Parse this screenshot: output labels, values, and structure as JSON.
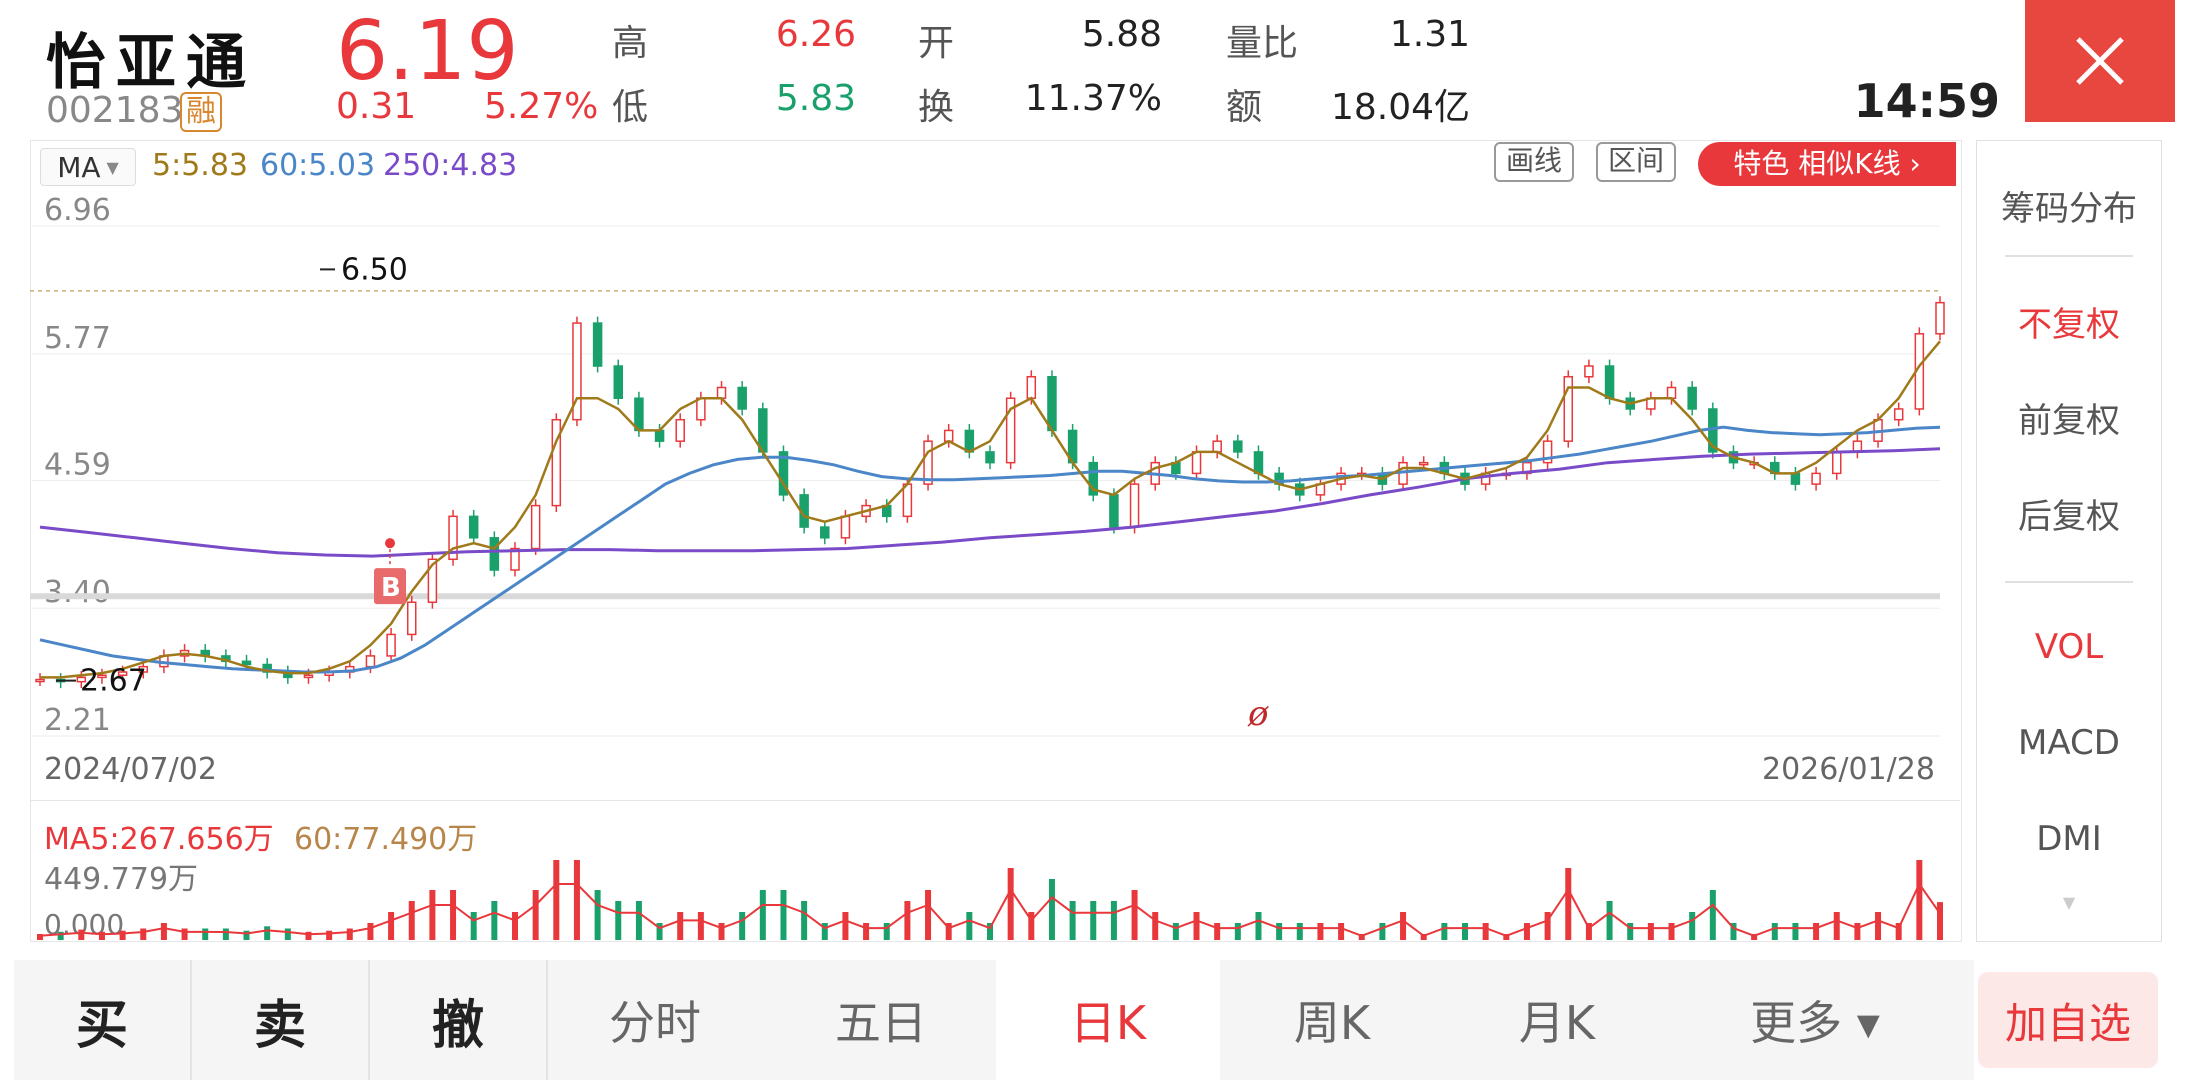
{
  "header": {
    "stock_name": "怡亚通",
    "stock_code": "002183",
    "margin_badge": "融",
    "price": "6.19",
    "change": "0.31",
    "change_pct": "5.27%",
    "time": "14:59",
    "quotes": [
      {
        "label": "高",
        "value": "6.26",
        "tone": "red"
      },
      {
        "label": "低",
        "value": "5.83",
        "tone": "green"
      },
      {
        "label": "开",
        "value": "5.88",
        "tone": "dark"
      },
      {
        "label": "换",
        "value": "11.37%",
        "tone": "dark"
      },
      {
        "label": "量比",
        "value": "1.31",
        "tone": "dark"
      },
      {
        "label": "额",
        "value": "18.04亿",
        "tone": "dark"
      }
    ],
    "close_icon": "close-icon"
  },
  "toolbar": {
    "ma_select": "MA",
    "ma5": "5:5.83",
    "ma60": "60:5.03",
    "ma250": "250:4.83",
    "draw_button": "画线",
    "range_button": "区间",
    "special_button": "特色  相似K线 ›"
  },
  "chart_data": {
    "type": "candlestick",
    "y_axis_labels": [
      "6.96",
      "5.77",
      "4.59",
      "3.40",
      "2.21"
    ],
    "ylim": [
      2.21,
      6.96
    ],
    "x_start": "2024/07/02",
    "x_end": "2026/01/28",
    "high_marker": "6.50",
    "low_marker": "2.67",
    "buy_marker": "B",
    "center_marker": "ø",
    "colors": {
      "up": "#e8383b",
      "down": "#1aa06b",
      "ma5": "#a07a1a",
      "ma60": "#4a86c8",
      "ma250": "#7a4bc8"
    },
    "close_series": [
      2.68,
      2.66,
      2.7,
      2.72,
      2.75,
      2.8,
      2.9,
      2.95,
      2.9,
      2.85,
      2.82,
      2.75,
      2.7,
      2.72,
      2.75,
      2.8,
      2.9,
      3.1,
      3.4,
      3.8,
      4.2,
      4.0,
      3.7,
      3.9,
      4.3,
      5.1,
      6.0,
      5.6,
      5.3,
      5.0,
      4.9,
      5.1,
      5.3,
      5.4,
      5.2,
      4.8,
      4.4,
      4.1,
      4.0,
      4.2,
      4.3,
      4.2,
      4.5,
      4.9,
      5.0,
      4.8,
      4.7,
      5.3,
      5.5,
      5.0,
      4.7,
      4.4,
      4.1,
      4.5,
      4.7,
      4.6,
      4.8,
      4.9,
      4.8,
      4.6,
      4.5,
      4.4,
      4.5,
      4.6,
      4.6,
      4.5,
      4.7,
      4.7,
      4.6,
      4.5,
      4.6,
      4.6,
      4.7,
      4.9,
      5.5,
      5.6,
      5.3,
      5.2,
      5.3,
      5.4,
      5.2,
      4.8,
      4.7,
      4.7,
      4.6,
      4.5,
      4.6,
      4.8,
      4.9,
      5.1,
      5.2,
      5.9,
      6.19
    ],
    "ma5_series": [
      2.7,
      2.7,
      2.72,
      2.74,
      2.78,
      2.84,
      2.9,
      2.92,
      2.9,
      2.86,
      2.8,
      2.76,
      2.74,
      2.74,
      2.78,
      2.85,
      3.0,
      3.2,
      3.5,
      3.75,
      3.9,
      3.95,
      3.9,
      4.1,
      4.4,
      4.9,
      5.3,
      5.3,
      5.2,
      5.0,
      5.0,
      5.2,
      5.3,
      5.3,
      5.1,
      4.8,
      4.5,
      4.2,
      4.15,
      4.2,
      4.25,
      4.3,
      4.5,
      4.8,
      4.9,
      4.8,
      4.9,
      5.2,
      5.3,
      5.0,
      4.7,
      4.45,
      4.4,
      4.55,
      4.65,
      4.7,
      4.8,
      4.8,
      4.7,
      4.6,
      4.5,
      4.45,
      4.5,
      4.55,
      4.58,
      4.55,
      4.65,
      4.65,
      4.6,
      4.55,
      4.6,
      4.65,
      4.75,
      5.0,
      5.4,
      5.4,
      5.3,
      5.25,
      5.3,
      5.3,
      5.1,
      4.85,
      4.75,
      4.7,
      4.6,
      4.6,
      4.7,
      4.85,
      5.0,
      5.1,
      5.3,
      5.6,
      5.83
    ],
    "ma60_series": [
      3.05,
      3.0,
      2.95,
      2.9,
      2.87,
      2.84,
      2.82,
      2.8,
      2.78,
      2.77,
      2.76,
      2.75,
      2.75,
      2.76,
      2.8,
      2.88,
      3.0,
      3.15,
      3.3,
      3.45,
      3.6,
      3.75,
      3.9,
      4.05,
      4.2,
      4.35,
      4.5,
      4.6,
      4.68,
      4.73,
      4.75,
      4.75,
      4.72,
      4.68,
      4.62,
      4.57,
      4.55,
      4.54,
      4.54,
      4.55,
      4.56,
      4.57,
      4.58,
      4.6,
      4.62,
      4.62,
      4.6,
      4.58,
      4.55,
      4.53,
      4.52,
      4.52,
      4.53,
      4.55,
      4.57,
      4.58,
      4.6,
      4.62,
      4.64,
      4.66,
      4.68,
      4.7,
      4.72,
      4.75,
      4.78,
      4.82,
      4.86,
      4.9,
      4.95,
      5.0,
      5.03,
      5.0,
      4.98,
      4.97,
      4.96,
      4.97,
      4.98,
      5.0,
      5.02,
      5.03
    ],
    "ma250_series": [
      4.1,
      4.05,
      4.0,
      3.95,
      3.9,
      3.86,
      3.84,
      3.83,
      3.85,
      3.87,
      3.88,
      3.89,
      3.89,
      3.88,
      3.88,
      3.88,
      3.89,
      3.9,
      3.93,
      3.96,
      4.0,
      4.03,
      4.06,
      4.1,
      4.15,
      4.2,
      4.25,
      4.32,
      4.4,
      4.47,
      4.55,
      4.6,
      4.64,
      4.7,
      4.73,
      4.76,
      4.78,
      4.79,
      4.8,
      4.81,
      4.83
    ]
  },
  "volume": {
    "ma5_label": "MA5:267.656万",
    "ma60_label": "60:77.490万",
    "max_label": "449.779万",
    "min_label": "0.000"
  },
  "right_panel": {
    "items": [
      "筹码分布",
      "不复权",
      "前复权",
      "后复权",
      "VOL",
      "MACD",
      "DMI"
    ],
    "active_color": "#e8383b"
  },
  "bottom_tabs": {
    "buy": "买",
    "sell": "卖",
    "cancel": "撤",
    "intraday": "分时",
    "five_day": "五日",
    "day_k": "日K",
    "week_k": "周K",
    "month_k": "月K",
    "more": "更多 ▾",
    "add_watch": "加自选"
  }
}
